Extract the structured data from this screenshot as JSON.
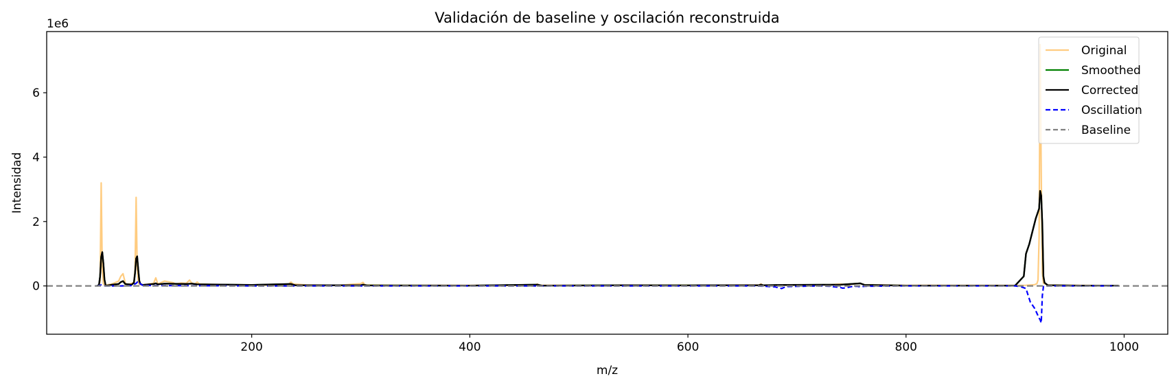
{
  "chart_data": {
    "type": "line",
    "title": "Validación de baseline y oscilación reconstruida",
    "xlabel": "m/z",
    "ylabel": "Intensidad",
    "y_offset_text": "1e6",
    "xlim": [
      12,
      1040
    ],
    "ylim": [
      -1500000,
      7900000
    ],
    "x_ticks": [
      200,
      400,
      600,
      800,
      1000
    ],
    "x_tick_labels": [
      "200",
      "400",
      "600",
      "800",
      "1000"
    ],
    "y_ticks": [
      0,
      2000000,
      4000000,
      6000000
    ],
    "y_tick_labels": [
      "0",
      "2",
      "4",
      "6"
    ],
    "grid": false,
    "legend_position": "top-right",
    "colors": {
      "original": "#ffcc80",
      "smoothed": "#008000",
      "corrected": "#000000",
      "oscillation": "#0000ff",
      "baseline": "#808080"
    },
    "baseline_value": 0,
    "series": [
      {
        "name": "Original",
        "style": "solid",
        "x": [
          58,
          60,
          61,
          62,
          63,
          64,
          65,
          66,
          67,
          72,
          78,
          80,
          82,
          84,
          85,
          88,
          90,
          92,
          93,
          94,
          95,
          96,
          97,
          98,
          100,
          110,
          112,
          114,
          120,
          128,
          130,
          135,
          140,
          143,
          145,
          148,
          150,
          152,
          160,
          180,
          200,
          230,
          234,
          236,
          238,
          250,
          280,
          300,
          302,
          304,
          340,
          400,
          460,
          462,
          464,
          520,
          540,
          600,
          610,
          665,
          667,
          669,
          685,
          730,
          740,
          745,
          750,
          755,
          758,
          762,
          800,
          820,
          840,
          900,
          910,
          915,
          918,
          920,
          921,
          922,
          923,
          924,
          925,
          926,
          930,
          960,
          995
        ],
        "y": [
          0,
          30000,
          150000,
          3200000,
          500000,
          80000,
          20000,
          0,
          30000,
          60000,
          150000,
          300000,
          380000,
          100000,
          40000,
          60000,
          80000,
          120000,
          500000,
          2750000,
          600000,
          120000,
          50000,
          40000,
          30000,
          80000,
          250000,
          60000,
          150000,
          100000,
          60000,
          90000,
          80000,
          180000,
          90000,
          60000,
          120000,
          60000,
          50000,
          40000,
          30000,
          20000,
          60000,
          120000,
          60000,
          30000,
          20000,
          70000,
          110000,
          30000,
          20000,
          15000,
          20000,
          60000,
          20000,
          20000,
          25000,
          25000,
          20000,
          30000,
          60000,
          20000,
          20000,
          40000,
          60000,
          40000,
          50000,
          70000,
          80000,
          40000,
          15000,
          20000,
          15000,
          15000,
          20000,
          30000,
          40000,
          70000,
          180000,
          1500000,
          7500000,
          3500000,
          400000,
          80000,
          30000,
          15000,
          10000
        ]
      },
      {
        "name": "Smoothed",
        "style": "solid",
        "x": [
          58,
          60,
          61,
          62,
          63,
          64,
          65,
          66,
          67,
          72,
          78,
          80,
          82,
          84,
          90,
          92,
          93,
          94,
          95,
          96,
          97,
          98,
          100,
          110,
          112,
          114,
          120,
          140,
          145,
          150,
          200,
          236,
          240,
          300,
          302,
          306,
          400,
          462,
          466,
          540,
          600,
          610,
          665,
          667,
          669,
          685,
          740,
          758,
          762,
          800,
          900,
          908,
          910,
          913,
          916,
          919,
          922,
          923,
          924,
          925,
          926,
          927,
          930,
          960,
          995
        ],
        "y": [
          0,
          30000,
          300000,
          900000,
          1050000,
          700000,
          200000,
          20000,
          10000,
          40000,
          60000,
          120000,
          150000,
          60000,
          40000,
          100000,
          400000,
          850000,
          920000,
          500000,
          150000,
          60000,
          30000,
          60000,
          80000,
          50000,
          70000,
          60000,
          70000,
          50000,
          30000,
          60000,
          20000,
          20000,
          40000,
          15000,
          10000,
          40000,
          10000,
          20000,
          15000,
          20000,
          20000,
          40000,
          20000,
          30000,
          40000,
          80000,
          30000,
          10000,
          10000,
          300000,
          1000000,
          1300000,
          1700000,
          2100000,
          2400000,
          2950000,
          2800000,
          1900000,
          300000,
          100000,
          20000,
          10000,
          10000
        ]
      },
      {
        "name": "Corrected",
        "style": "solid",
        "x": [
          58,
          60,
          61,
          62,
          63,
          64,
          65,
          66,
          67,
          72,
          78,
          80,
          82,
          84,
          90,
          92,
          93,
          94,
          95,
          96,
          97,
          98,
          100,
          110,
          112,
          114,
          120,
          140,
          145,
          150,
          200,
          236,
          240,
          300,
          302,
          306,
          400,
          462,
          466,
          540,
          600,
          610,
          665,
          667,
          669,
          685,
          740,
          758,
          762,
          800,
          900,
          908,
          910,
          913,
          916,
          919,
          922,
          923,
          924,
          925,
          926,
          927,
          930,
          960,
          995
        ],
        "y": [
          0,
          30000,
          300000,
          900000,
          1050000,
          700000,
          200000,
          20000,
          10000,
          40000,
          60000,
          120000,
          150000,
          60000,
          40000,
          100000,
          400000,
          850000,
          920000,
          500000,
          150000,
          60000,
          30000,
          60000,
          80000,
          50000,
          70000,
          60000,
          70000,
          50000,
          30000,
          60000,
          20000,
          20000,
          40000,
          15000,
          10000,
          40000,
          10000,
          20000,
          15000,
          20000,
          20000,
          40000,
          20000,
          30000,
          40000,
          80000,
          30000,
          10000,
          10000,
          300000,
          1000000,
          1300000,
          1700000,
          2100000,
          2400000,
          2950000,
          2800000,
          1900000,
          300000,
          100000,
          20000,
          10000,
          10000
        ]
      },
      {
        "name": "Oscillation",
        "style": "dashed",
        "x": [
          58,
          60,
          62,
          64,
          66,
          70,
          80,
          90,
          94,
          96,
          98,
          100,
          110,
          130,
          160,
          200,
          300,
          400,
          500,
          600,
          660,
          670,
          680,
          683,
          686,
          690,
          720,
          730,
          740,
          742,
          745,
          750,
          755,
          758,
          762,
          800,
          900,
          905,
          910,
          912,
          914,
          916,
          918,
          920,
          922,
          923,
          924,
          925,
          926,
          930,
          960,
          995
        ],
        "y": [
          0,
          10000,
          30000,
          10000,
          0,
          0,
          0,
          10000,
          80000,
          150000,
          60000,
          20000,
          10000,
          10000,
          5000,
          0,
          0,
          0,
          0,
          0,
          0,
          -10000,
          -30000,
          -60000,
          -80000,
          -20000,
          0,
          -10000,
          -50000,
          -70000,
          -60000,
          -20000,
          -10000,
          -30000,
          -10000,
          0,
          0,
          -20000,
          -80000,
          -300000,
          -500000,
          -600000,
          -700000,
          -850000,
          -1000000,
          -1050000,
          -1150000,
          -300000,
          -20000,
          0,
          0,
          0
        ]
      }
    ]
  }
}
